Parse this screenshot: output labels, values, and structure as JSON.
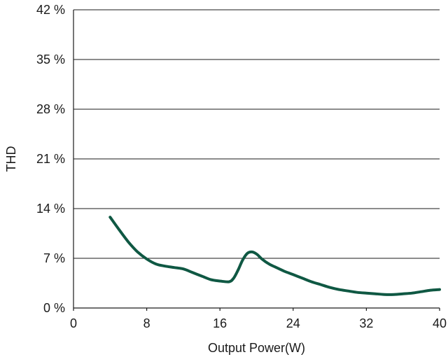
{
  "chart_data": {
    "type": "line",
    "xlabel": "Output Power(W)",
    "ylabel": "THD",
    "xlim": [
      0,
      40
    ],
    "ylim": [
      0,
      42
    ],
    "x_ticks": [
      "0",
      "8",
      "16",
      "24",
      "32",
      "40"
    ],
    "y_ticks": [
      "0 %",
      "7 %",
      "14 %",
      "21 %",
      "28 %",
      "35 %",
      "42 %"
    ],
    "grid": "horizontal",
    "series": [
      {
        "color": "#0f5843",
        "x": [
          4,
          5,
          6,
          7,
          8,
          9,
          10,
          11,
          12,
          13,
          14,
          15,
          16,
          17,
          17.5,
          18,
          18.5,
          19,
          19.5,
          20,
          20.5,
          21,
          21.5,
          22,
          23,
          24,
          25,
          26,
          27,
          28,
          29,
          30,
          31,
          32,
          33,
          34,
          35,
          36,
          37,
          38,
          39,
          40
        ],
        "y": [
          12.8,
          11.0,
          9.3,
          7.9,
          6.9,
          6.2,
          5.9,
          5.7,
          5.5,
          5.0,
          4.5,
          4.0,
          3.8,
          3.7,
          4.2,
          5.4,
          6.8,
          7.7,
          7.9,
          7.6,
          7.0,
          6.5,
          6.1,
          5.8,
          5.2,
          4.7,
          4.2,
          3.7,
          3.3,
          2.9,
          2.6,
          2.4,
          2.2,
          2.1,
          2.0,
          1.9,
          1.9,
          2.0,
          2.1,
          2.3,
          2.5,
          2.6
        ]
      }
    ]
  }
}
